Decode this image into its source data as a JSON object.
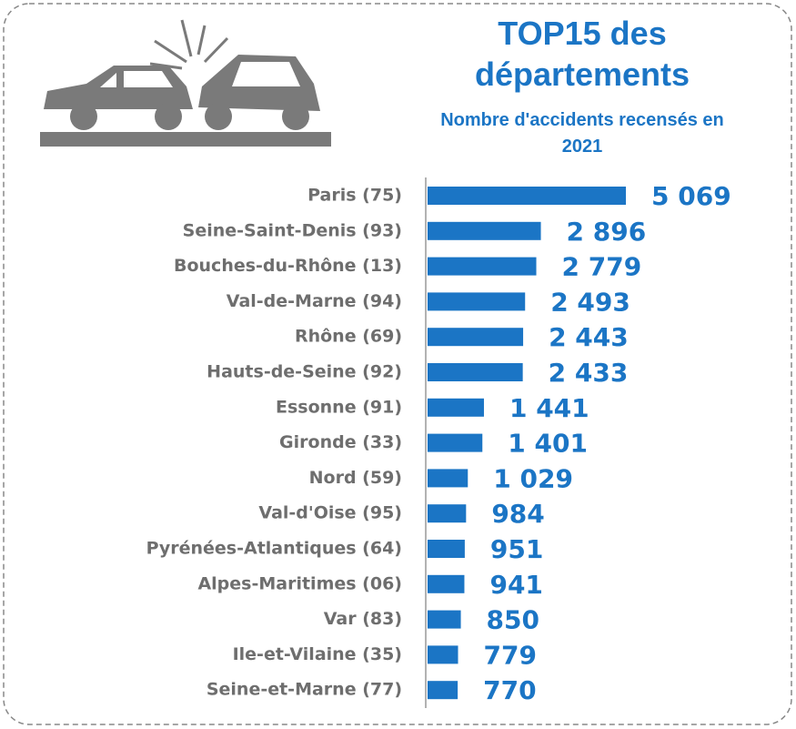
{
  "chart_data": {
    "type": "bar",
    "orientation": "horizontal",
    "title": "TOP15 des départements",
    "subtitle": "Nombre d'accidents recensés en 2021",
    "categories": [
      "Paris (75)",
      "Seine-Saint-Denis (93)",
      "Bouches-du-Rhône (13)",
      "Val-de-Marne (94)",
      "Rhône (69)",
      "Hauts-de-Seine (92)",
      "Essonne (91)",
      "Gironde (33)",
      "Nord (59)",
      "Val-d'Oise (95)",
      "Pyrénées-Atlantiques (64)",
      "Alpes-Maritimes (06)",
      "Var (83)",
      "Ile-et-Vilaine (35)",
      "Seine-et-Marne (77)"
    ],
    "values": [
      5069,
      2896,
      2779,
      2493,
      2443,
      2433,
      1441,
      1401,
      1029,
      984,
      951,
      941,
      850,
      779,
      770
    ],
    "value_labels": [
      "5 069",
      "2 896",
      "2 779",
      "2 493",
      "2 443",
      "2 433",
      "1 441",
      "1 401",
      "1 029",
      "984",
      "951",
      "941",
      "850",
      "779",
      "770"
    ],
    "color": "#1b75c5"
  }
}
